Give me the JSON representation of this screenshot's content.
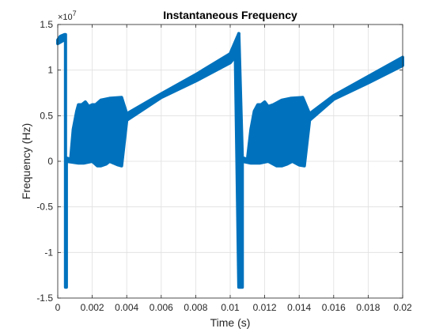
{
  "chart_data": {
    "type": "line",
    "title": "Instantaneous Frequency",
    "xlabel": "Time (s)",
    "ylabel": "Frequency (Hz)",
    "y_exponent_label": "×10",
    "y_exponent": "7",
    "xlim": [
      0,
      0.02
    ],
    "ylim": [
      -1.5,
      1.5
    ],
    "y_scale_factor": 10000000,
    "xticks": [
      0,
      0.002,
      0.004,
      0.006,
      0.008,
      0.01,
      0.012,
      0.014,
      0.016,
      0.018,
      0.02
    ],
    "xtick_labels": [
      "0",
      "0.002",
      "0.004",
      "0.006",
      "0.008",
      "0.01",
      "0.012",
      "0.014",
      "0.016",
      "0.018",
      "0.02"
    ],
    "yticks": [
      -1.5,
      -1,
      -0.5,
      0,
      0.5,
      1,
      1.5
    ],
    "ytick_labels": [
      "-1.5",
      "-1",
      "-0.5",
      "0",
      "0.5",
      "1",
      "1.5"
    ],
    "grid": true,
    "series_color": "#0072BD",
    "series": [
      {
        "upper": [
          [
            0,
            1.33
          ],
          [
            0.00015,
            1.37
          ],
          [
            0.0004,
            1.39
          ],
          [
            0.00045,
            1.39
          ],
          [
            0.00045,
            0.04
          ],
          [
            0.00075,
            0.02
          ],
          [
            0.0009,
            0.35
          ],
          [
            0.0011,
            0.55
          ],
          [
            0.0012,
            0.62
          ],
          [
            0.0014,
            0.62
          ],
          [
            0.0016,
            0.65
          ],
          [
            0.0018,
            0.6
          ],
          [
            0.002,
            0.62
          ],
          [
            0.0022,
            0.62
          ],
          [
            0.0025,
            0.67
          ],
          [
            0.003,
            0.69
          ],
          [
            0.0037,
            0.7
          ],
          [
            0.004,
            0.52
          ],
          [
            0.006,
            0.74
          ],
          [
            0.008,
            0.95
          ],
          [
            0.01,
            1.18
          ],
          [
            0.0105,
            1.4
          ]
        ],
        "lower": [
          [
            0,
            1.29
          ],
          [
            0.00045,
            1.34
          ],
          [
            0.00045,
            -1.38
          ],
          [
            0.0005,
            -1.38
          ],
          [
            0.0005,
            0.0
          ],
          [
            0.0012,
            -0.02
          ],
          [
            0.0015,
            -0.02
          ],
          [
            0.002,
            0.0
          ],
          [
            0.0023,
            -0.05
          ],
          [
            0.0025,
            -0.05
          ],
          [
            0.0028,
            -0.03
          ],
          [
            0.003,
            0.0
          ],
          [
            0.0035,
            -0.04
          ],
          [
            0.0037,
            -0.05
          ],
          [
            0.004,
            0.45
          ],
          [
            0.006,
            0.7
          ],
          [
            0.008,
            0.88
          ],
          [
            0.01,
            1.08
          ],
          [
            0.0103,
            1.15
          ]
        ]
      },
      {
        "upper": [
          [
            0.0105,
            1.4
          ],
          [
            0.0107,
            0.04
          ],
          [
            0.011,
            0.02
          ],
          [
            0.0112,
            0.35
          ],
          [
            0.0114,
            0.55
          ],
          [
            0.0116,
            0.62
          ],
          [
            0.0118,
            0.62
          ],
          [
            0.012,
            0.65
          ],
          [
            0.0122,
            0.6
          ],
          [
            0.0125,
            0.62
          ],
          [
            0.013,
            0.67
          ],
          [
            0.0135,
            0.69
          ],
          [
            0.0142,
            0.7
          ],
          [
            0.0146,
            0.52
          ],
          [
            0.016,
            0.72
          ],
          [
            0.018,
            0.93
          ],
          [
            0.02,
            1.14
          ]
        ],
        "lower": [
          [
            0.0103,
            1.15
          ],
          [
            0.0105,
            -1.38
          ],
          [
            0.0107,
            -1.38
          ],
          [
            0.0107,
            0.0
          ],
          [
            0.0112,
            -0.02
          ],
          [
            0.0117,
            -0.02
          ],
          [
            0.0122,
            0.0
          ],
          [
            0.0127,
            -0.05
          ],
          [
            0.013,
            -0.05
          ],
          [
            0.0133,
            -0.03
          ],
          [
            0.0136,
            0.0
          ],
          [
            0.014,
            -0.04
          ],
          [
            0.0143,
            -0.05
          ],
          [
            0.0146,
            0.45
          ],
          [
            0.016,
            0.68
          ],
          [
            0.018,
            0.86
          ],
          [
            0.02,
            1.05
          ]
        ]
      }
    ]
  }
}
